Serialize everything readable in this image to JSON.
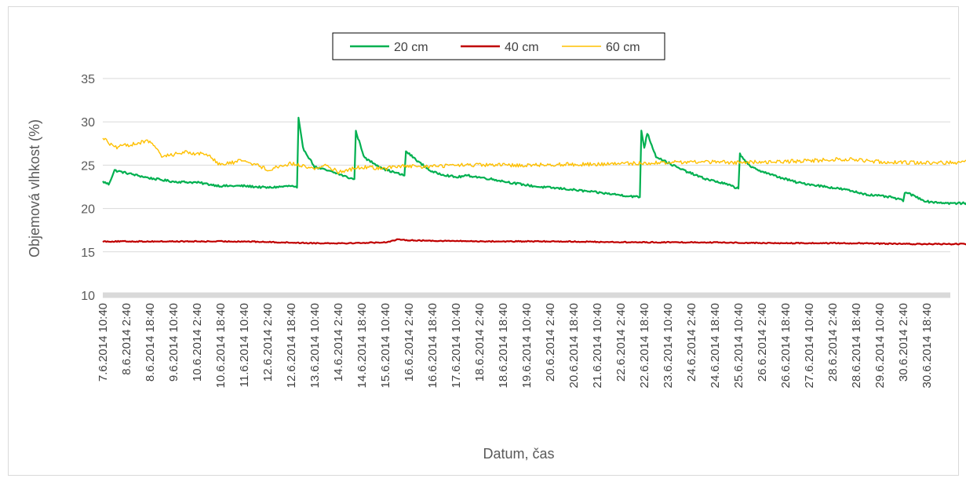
{
  "chart_data": {
    "type": "line",
    "title": "",
    "xlabel": "Datum, čas",
    "ylabel": "Objemová vlhkost (%)",
    "ylim": [
      10,
      35
    ],
    "yticks": [
      10,
      15,
      20,
      25,
      30,
      35
    ],
    "grid": true,
    "legend_position": "top",
    "x_tick_labels": [
      "7.6.2014 10:40",
      "8.6.2014 2:40",
      "8.6.2014 18:40",
      "9.6.2014 10:40",
      "10.6.2014 2:40",
      "10.6.2014 18:40",
      "11.6.2014 10:40",
      "12.6.2014 2:40",
      "12.6.2014 18:40",
      "13.6.2014 10:40",
      "14.6.2014 2:40",
      "14.6.2014 18:40",
      "15.6.2014 10:40",
      "16.6.2014 2:40",
      "16.6.2014 18:40",
      "17.6.2014 10:40",
      "18.6.2014 2:40",
      "18.6.2014 18:40",
      "19.6.2014 10:40",
      "20.6.2014 2:40",
      "20.6.2014 18:40",
      "21.6.2014 10:40",
      "22.6.2014 2:40",
      "22.6.2014 18:40",
      "23.6.2014 10:40",
      "24.6.2014 2:40",
      "24.6.2014 18:40",
      "25.6.2014 10:40",
      "26.6.2014 2:40",
      "26.6.2014 18:40",
      "27.6.2014 10:40",
      "28.6.2014 2:40",
      "28.6.2014 18:40",
      "29.6.2014 10:40",
      "30.6.2014 2:40",
      "30.6.2014 18:40"
    ],
    "series": [
      {
        "name": "20 cm",
        "color": "#00b050",
        "points": [
          [
            "7.6.2014 10:40",
            23.1
          ],
          [
            "7.6.2014 14:40",
            22.8
          ],
          [
            "7.6.2014 18:40",
            24.4
          ],
          [
            "8.6.2014 2:40",
            24.1
          ],
          [
            "8.6.2014 18:40",
            23.5
          ],
          [
            "9.6.2014 10:40",
            23.1
          ],
          [
            "10.6.2014 2:40",
            23.0
          ],
          [
            "10.6.2014 18:40",
            22.6
          ],
          [
            "11.6.2014 10:40",
            22.6
          ],
          [
            "12.6.2014 2:40",
            22.4
          ],
          [
            "12.6.2014 18:40",
            22.6
          ],
          [
            "12.6.2014 22:40",
            22.4
          ],
          [
            "12.6.2014 23:40",
            30.4
          ],
          [
            "13.6.2014 2:40",
            27.0
          ],
          [
            "13.6.2014 10:40",
            24.8
          ],
          [
            "14.6.2014 2:40",
            24.0
          ],
          [
            "14.6.2014 10:40",
            23.5
          ],
          [
            "14.6.2014 13:40",
            23.4
          ],
          [
            "14.6.2014 14:40",
            28.9
          ],
          [
            "14.6.2014 20:40",
            25.8
          ],
          [
            "15.6.2014 10:40",
            24.5
          ],
          [
            "15.6.2014 23:40",
            23.8
          ],
          [
            "16.6.2014 0:40",
            26.6
          ],
          [
            "16.6.2014 10:40",
            25.2
          ],
          [
            "16.6.2014 18:40",
            24.2
          ],
          [
            "17.6.2014 10:40",
            23.6
          ],
          [
            "17.6.2014 18:40",
            23.8
          ],
          [
            "18.6.2014 10:40",
            23.4
          ],
          [
            "19.6.2014 2:40",
            22.9
          ],
          [
            "19.6.2014 18:40",
            22.5
          ],
          [
            "20.6.2014 10:40",
            22.3
          ],
          [
            "21.6.2014 2:40",
            22.0
          ],
          [
            "21.6.2014 18:40",
            21.7
          ],
          [
            "22.6.2014 10:40",
            21.4
          ],
          [
            "22.6.2014 15:40",
            21.3
          ],
          [
            "22.6.2014 16:40",
            29.0
          ],
          [
            "22.6.2014 18:40",
            27.0
          ],
          [
            "22.6.2014 20:40",
            28.7
          ],
          [
            "23.6.2014 2:40",
            26.0
          ],
          [
            "23.6.2014 18:40",
            24.6
          ],
          [
            "24.6.2014 10:40",
            23.5
          ],
          [
            "25.6.2014 2:40",
            22.8
          ],
          [
            "25.6.2014 10:40",
            22.3
          ],
          [
            "25.6.2014 11:40",
            26.3
          ],
          [
            "25.6.2014 18:40",
            24.8
          ],
          [
            "26.6.2014 10:40",
            23.8
          ],
          [
            "27.6.2014 2:40",
            23.0
          ],
          [
            "27.6.2014 18:40",
            22.6
          ],
          [
            "28.6.2014 10:40",
            22.2
          ],
          [
            "29.6.2014 2:40",
            21.6
          ],
          [
            "29.6.2014 18:40",
            21.3
          ],
          [
            "30.6.2014 2:40",
            20.9
          ],
          [
            "30.6.2014 3:40",
            21.9
          ],
          [
            "30.6.2014 10:40",
            21.4
          ],
          [
            "30.6.2014 18:40",
            20.8
          ],
          [
            "1.7.2014 10:40",
            20.6
          ],
          [
            "2.7.2014 2:40",
            20.6
          ],
          [
            "2.7.2014 10:40",
            20.5
          ]
        ]
      },
      {
        "name": "40 cm",
        "color": "#c00000",
        "points": [
          [
            "7.6.2014 10:40",
            16.2
          ],
          [
            "9.6.2014 10:40",
            16.2
          ],
          [
            "11.6.2014 10:40",
            16.2
          ],
          [
            "12.6.2014 10:40",
            16.1
          ],
          [
            "13.6.2014 10:40",
            16.0
          ],
          [
            "14.6.2014 10:40",
            16.0
          ],
          [
            "15.6.2014 10:40",
            16.1
          ],
          [
            "15.6.2014 18:40",
            16.4
          ],
          [
            "16.6.2014 10:40",
            16.3
          ],
          [
            "18.6.2014 10:40",
            16.2
          ],
          [
            "20.6.2014 10:40",
            16.2
          ],
          [
            "22.6.2014 10:40",
            16.1
          ],
          [
            "24.6.2014 10:40",
            16.1
          ],
          [
            "26.6.2014 10:40",
            16.0
          ],
          [
            "28.6.2014 10:40",
            16.0
          ],
          [
            "30.6.2014 10:40",
            15.9
          ],
          [
            "2.7.2014 10:40",
            15.9
          ]
        ]
      },
      {
        "name": "60 cm",
        "color": "#ffc000",
        "points": [
          [
            "7.6.2014 10:40",
            28.2
          ],
          [
            "7.6.2014 18:40",
            27.0
          ],
          [
            "8.6.2014 2:40",
            27.3
          ],
          [
            "8.6.2014 18:40",
            27.8
          ],
          [
            "9.6.2014 2:40",
            26.0
          ],
          [
            "9.6.2014 18:40",
            26.5
          ],
          [
            "10.6.2014 10:40",
            26.2
          ],
          [
            "10.6.2014 18:40",
            25.0
          ],
          [
            "11.6.2014 10:40",
            25.6
          ],
          [
            "12.6.2014 2:40",
            24.5
          ],
          [
            "12.6.2014 18:40",
            25.2
          ],
          [
            "13.6.2014 10:40",
            24.6
          ],
          [
            "13.6.2014 18:40",
            25.0
          ],
          [
            "14.6.2014 2:40",
            24.2
          ],
          [
            "14.6.2014 18:40",
            24.8
          ],
          [
            "15.6.2014 10:40",
            24.6
          ],
          [
            "15.6.2014 18:40",
            24.9
          ],
          [
            "16.6.2014 10:40",
            24.8
          ],
          [
            "17.6.2014 10:40",
            25.0
          ],
          [
            "18.6.2014 10:40",
            25.0
          ],
          [
            "19.6.2014 10:40",
            25.0
          ],
          [
            "20.6.2014 10:40",
            25.1
          ],
          [
            "21.6.2014 10:40",
            25.1
          ],
          [
            "22.6.2014 10:40",
            25.2
          ],
          [
            "23.6.2014 10:40",
            25.3
          ],
          [
            "24.6.2014 10:40",
            25.4
          ],
          [
            "25.6.2014 10:40",
            25.3
          ],
          [
            "26.6.2014 10:40",
            25.4
          ],
          [
            "27.6.2014 10:40",
            25.5
          ],
          [
            "28.6.2014 10:40",
            25.7
          ],
          [
            "29.6.2014 10:40",
            25.4
          ],
          [
            "30.6.2014 10:40",
            25.3
          ],
          [
            "1.7.2014 10:40",
            25.3
          ],
          [
            "2.7.2014 10:40",
            25.4
          ]
        ]
      }
    ]
  }
}
